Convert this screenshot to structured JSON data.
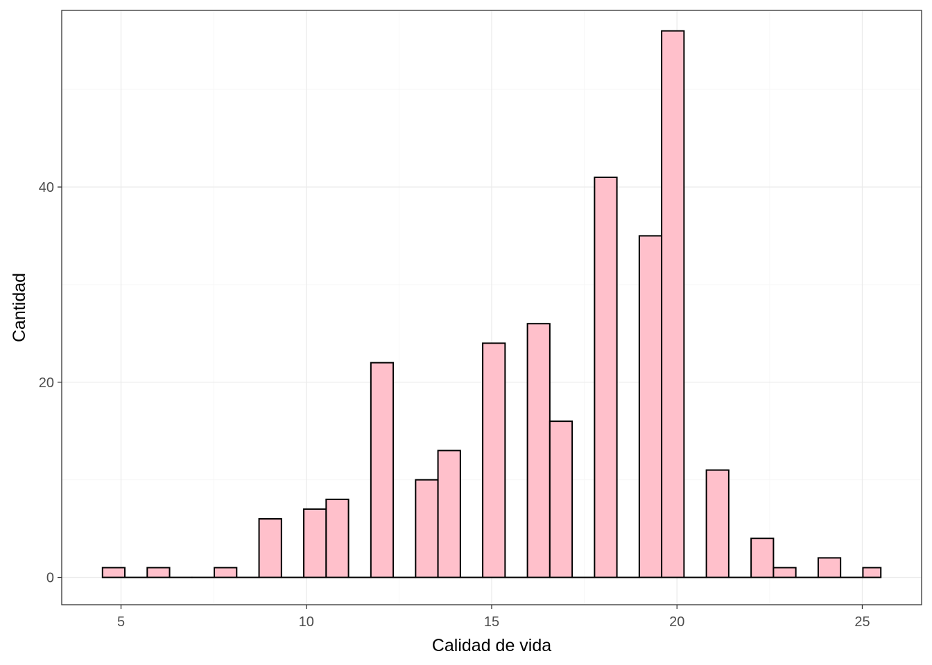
{
  "chart_data": {
    "type": "bar",
    "subtype": "histogram",
    "xlabel": "Calidad de vida",
    "ylabel": "Cantidad",
    "xlim": [
      3.4,
      26.6
    ],
    "ylim": [
      -2.8,
      58.1
    ],
    "x_ticks": [
      5,
      10,
      15,
      20,
      25
    ],
    "y_ticks": [
      0,
      20,
      40
    ],
    "grid": true,
    "bin_width": 0.6034,
    "bins": [
      {
        "start": 4.5,
        "end": 5.1034,
        "count": 1
      },
      {
        "start": 5.1034,
        "end": 5.7069,
        "count": 0
      },
      {
        "start": 5.7069,
        "end": 6.3103,
        "count": 1
      },
      {
        "start": 6.3103,
        "end": 6.9138,
        "count": 0
      },
      {
        "start": 6.9138,
        "end": 7.5172,
        "count": 0
      },
      {
        "start": 7.5172,
        "end": 8.1207,
        "count": 1
      },
      {
        "start": 8.1207,
        "end": 8.7241,
        "count": 0
      },
      {
        "start": 8.7241,
        "end": 9.3276,
        "count": 6
      },
      {
        "start": 9.3276,
        "end": 9.931,
        "count": 0
      },
      {
        "start": 9.931,
        "end": 10.5345,
        "count": 7
      },
      {
        "start": 10.5345,
        "end": 11.1379,
        "count": 8
      },
      {
        "start": 11.1379,
        "end": 11.7414,
        "count": 0
      },
      {
        "start": 11.7414,
        "end": 12.3448,
        "count": 22
      },
      {
        "start": 12.3448,
        "end": 12.9483,
        "count": 0
      },
      {
        "start": 12.9483,
        "end": 13.5517,
        "count": 10
      },
      {
        "start": 13.5517,
        "end": 14.1552,
        "count": 13
      },
      {
        "start": 14.1552,
        "end": 14.7586,
        "count": 0
      },
      {
        "start": 14.7586,
        "end": 15.3621,
        "count": 24
      },
      {
        "start": 15.3621,
        "end": 15.9655,
        "count": 0
      },
      {
        "start": 15.9655,
        "end": 16.569,
        "count": 26
      },
      {
        "start": 16.569,
        "end": 17.1724,
        "count": 16
      },
      {
        "start": 17.1724,
        "end": 17.7759,
        "count": 0
      },
      {
        "start": 17.7759,
        "end": 18.3793,
        "count": 41
      },
      {
        "start": 18.3793,
        "end": 18.9828,
        "count": 0
      },
      {
        "start": 18.9828,
        "end": 19.5862,
        "count": 35
      },
      {
        "start": 19.5862,
        "end": 20.1897,
        "count": 56
      },
      {
        "start": 20.1897,
        "end": 20.7931,
        "count": 0
      },
      {
        "start": 20.7931,
        "end": 21.3966,
        "count": 11
      },
      {
        "start": 21.3966,
        "end": 22.0,
        "count": 0
      },
      {
        "start": 22.0,
        "end": 22.6034,
        "count": 4
      },
      {
        "start": 22.6034,
        "end": 23.2069,
        "count": 1
      },
      {
        "start": 23.2069,
        "end": 23.8103,
        "count": 0
      },
      {
        "start": 23.8103,
        "end": 24.4138,
        "count": 2
      },
      {
        "start": 24.4138,
        "end": 25.0172,
        "count": 0
      },
      {
        "start": 25.0172,
        "end": 25.5,
        "count": 1
      }
    ],
    "colors": {
      "bar_fill": "#ffc0cb",
      "bar_stroke": "#000000",
      "grid_major": "#ebebeb",
      "grid_minor": "#f5f5f5",
      "panel_border": "#333333",
      "tick_text": "#4d4d4d",
      "axis_title": "#000000"
    }
  }
}
